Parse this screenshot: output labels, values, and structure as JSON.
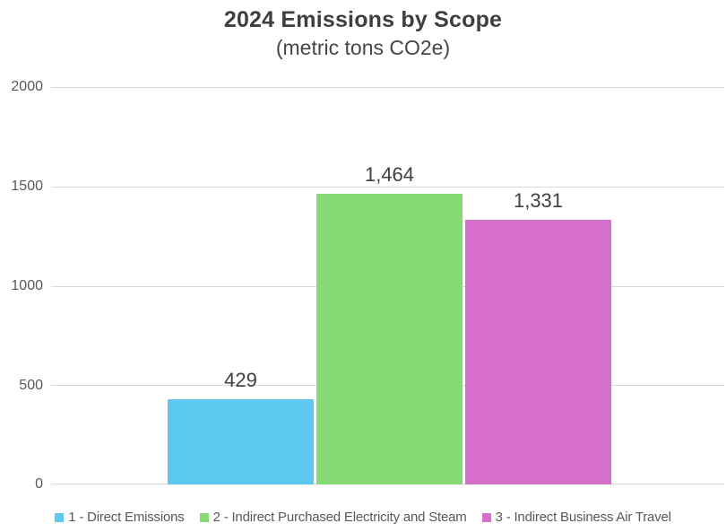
{
  "chart_data": {
    "type": "bar",
    "title": "2024 Emissions by Scope",
    "subtitle": "(metric tons CO2e)",
    "categories": [
      "1 - Direct Emissions",
      "2 - Indirect Purchased Electricity and Steam",
      "3 - Indirect Business Air Travel"
    ],
    "values": [
      429,
      1464,
      1331
    ],
    "value_labels": [
      "429",
      "1,464",
      "1,331"
    ],
    "colors": [
      "#5ec9f0",
      "#87d973",
      "#d56fc9"
    ],
    "ylim": [
      0,
      2000
    ],
    "y_ticks": [
      "0",
      "500",
      "1000",
      "1500",
      "2000"
    ],
    "grid": true,
    "gridline_color": "#d9d9d9",
    "legend_position": "bottom",
    "background_color": "#ffffff"
  }
}
